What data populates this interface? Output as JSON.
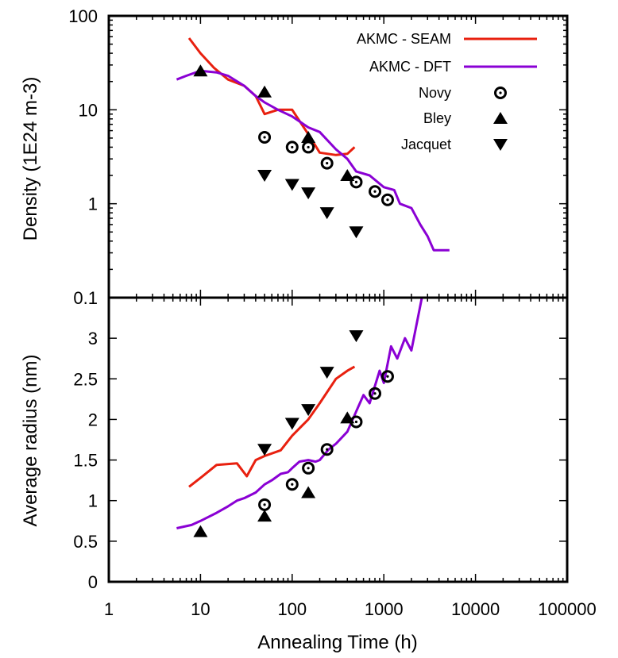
{
  "chart_data": [
    {
      "type": "line",
      "panel": "top",
      "xlabel": "",
      "ylabel": "Density (1E24 m-3)",
      "xscale": "log",
      "yscale": "log",
      "xlim": [
        1,
        100000
      ],
      "ylim": [
        0.1,
        100
      ],
      "y_tick_labels": [
        "0.1",
        "1",
        "10",
        "100"
      ],
      "legend": {
        "position": "top-right"
      },
      "series": [
        {
          "name": "AKMC - SEAM",
          "kind": "line",
          "color": "#e8200f",
          "x": [
            7.5,
            10,
            14,
            20,
            30,
            40,
            50,
            70,
            100,
            150,
            200,
            300,
            400,
            480
          ],
          "y": [
            58,
            40,
            28,
            21,
            18,
            14,
            9,
            10,
            10,
            5.5,
            3.5,
            3.3,
            3.4,
            4
          ]
        },
        {
          "name": "AKMC - DFT",
          "kind": "line",
          "color": "#8a00d4",
          "x": [
            5.5,
            7,
            10,
            15,
            20,
            30,
            40,
            50,
            70,
            100,
            150,
            200,
            300,
            400,
            500,
            700,
            1000,
            1300,
            1500,
            2000,
            2500,
            3000,
            3500,
            5200
          ],
          "y": [
            21,
            23,
            26,
            25,
            23,
            18,
            14,
            12,
            10,
            8.5,
            6.5,
            5.8,
            3.8,
            3,
            2.2,
            2,
            1.5,
            1.4,
            1,
            0.9,
            0.6,
            0.45,
            0.32,
            0.32
          ]
        },
        {
          "name": "Novy",
          "kind": "scatter",
          "marker": "ring",
          "x": [
            50,
            100,
            150,
            240,
            500,
            800,
            1100
          ],
          "y": [
            5.1,
            4,
            4,
            2.7,
            1.7,
            1.35,
            1.1
          ]
        },
        {
          "name": "Bley",
          "kind": "scatter",
          "marker": "triangle-up",
          "x": [
            10,
            50,
            150,
            400
          ],
          "y": [
            26,
            15.5,
            5.1,
            2
          ]
        },
        {
          "name": "Jacquet",
          "kind": "scatter",
          "marker": "triangle-down",
          "x": [
            50,
            100,
            150,
            240,
            500
          ],
          "y": [
            2,
            1.6,
            1.3,
            0.8,
            0.5
          ]
        }
      ]
    },
    {
      "type": "line",
      "panel": "bottom",
      "xlabel": "Annealing Time (h)",
      "ylabel": "Average radius (nm)",
      "xscale": "log",
      "yscale": "linear",
      "xlim": [
        1,
        100000
      ],
      "ylim": [
        0,
        3.5
      ],
      "x_tick_labels": [
        "1",
        "10",
        "100",
        "1000",
        "10000",
        "100000"
      ],
      "y_tick_labels": [
        "0",
        "0.5",
        "1",
        "1.5",
        "2",
        "2.5",
        "3"
      ],
      "series": [
        {
          "name": "AKMC - SEAM",
          "kind": "line",
          "color": "#e8200f",
          "x": [
            7.5,
            10,
            15,
            25,
            32,
            40,
            50,
            75,
            100,
            150,
            200,
            300,
            400,
            480
          ],
          "y": [
            1.17,
            1.28,
            1.44,
            1.46,
            1.3,
            1.5,
            1.55,
            1.62,
            1.8,
            2.0,
            2.2,
            2.5,
            2.6,
            2.65
          ]
        },
        {
          "name": "AKMC - DFT",
          "kind": "line",
          "color": "#8a00d4",
          "x": [
            5.5,
            8,
            10,
            15,
            20,
            25,
            30,
            40,
            50,
            60,
            75,
            90,
            100,
            120,
            150,
            180,
            200,
            250,
            300,
            400,
            500,
            600,
            700,
            900,
            1000,
            1200,
            1400,
            1700,
            2000,
            2600
          ],
          "y": [
            0.66,
            0.7,
            0.75,
            0.85,
            0.93,
            1.0,
            1.03,
            1.1,
            1.2,
            1.25,
            1.33,
            1.35,
            1.4,
            1.48,
            1.5,
            1.48,
            1.5,
            1.63,
            1.7,
            1.85,
            2.1,
            2.3,
            2.2,
            2.6,
            2.45,
            2.9,
            2.75,
            3.0,
            2.85,
            3.5
          ]
        },
        {
          "name": "Novy",
          "kind": "scatter",
          "marker": "ring",
          "x": [
            50,
            100,
            150,
            240,
            500,
            800,
            1100
          ],
          "y": [
            0.95,
            1.2,
            1.4,
            1.63,
            1.97,
            2.32,
            2.53
          ]
        },
        {
          "name": "Bley",
          "kind": "scatter",
          "marker": "triangle-up",
          "x": [
            10,
            50,
            150,
            400
          ],
          "y": [
            0.62,
            0.81,
            1.1,
            2.02
          ]
        },
        {
          "name": "Jacquet",
          "kind": "scatter",
          "marker": "triangle-down",
          "x": [
            50,
            100,
            150,
            240,
            500
          ],
          "y": [
            1.63,
            1.95,
            2.12,
            2.58,
            3.03
          ]
        }
      ]
    }
  ]
}
